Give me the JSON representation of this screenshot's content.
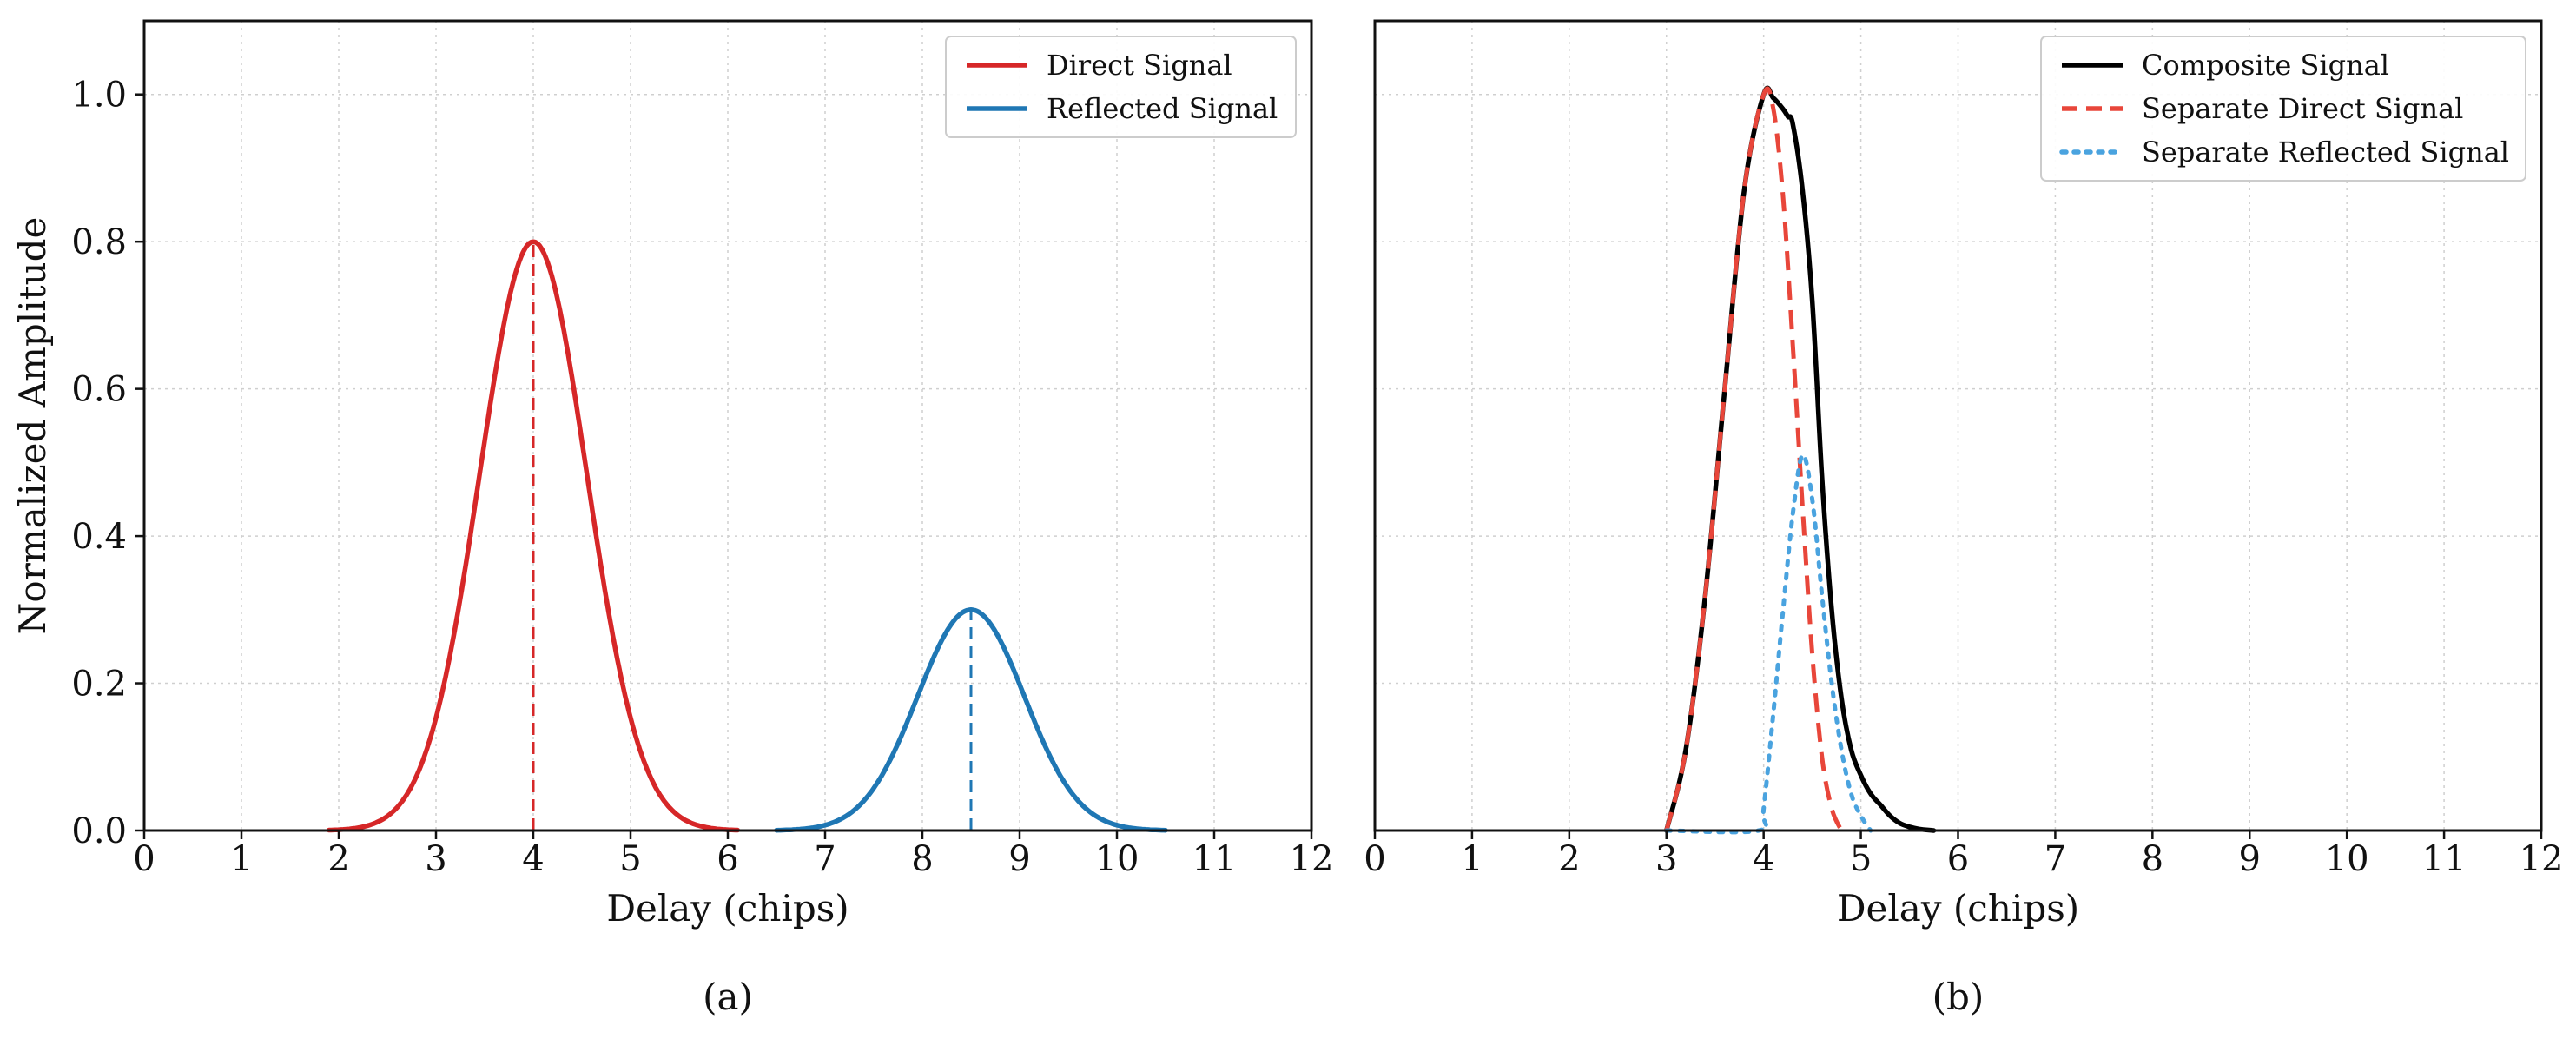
{
  "chart_data": [
    {
      "id": "a",
      "type": "line",
      "caption": "(a)",
      "xlabel": "Delay (chips)",
      "ylabel": "Normalized Amplitude",
      "xlim": [
        0,
        12
      ],
      "ylim": [
        0,
        1.1
      ],
      "xticks": [
        0,
        1,
        2,
        3,
        4,
        5,
        6,
        7,
        8,
        9,
        10,
        11,
        12
      ],
      "yticks": [
        0.0,
        0.2,
        0.4,
        0.6,
        0.8,
        1.0
      ],
      "ytick_labels": [
        "0.0",
        "0.2",
        "0.4",
        "0.6",
        "0.8",
        "1.0"
      ],
      "grid": true,
      "legend_position": "top-right",
      "series": [
        {
          "name": "Direct Signal",
          "color": "#d62728",
          "style": "solid",
          "curve": "gaussian",
          "peak_x": 4.0,
          "peak_y": 0.8,
          "sigma": 0.55,
          "x_range": [
            1.9,
            6.1
          ],
          "marker_line": {
            "x": 4.0,
            "y_top": 0.8,
            "style": "dashed"
          }
        },
        {
          "name": "Reflected Signal",
          "color": "#1f77b4",
          "style": "solid",
          "curve": "gaussian",
          "peak_x": 8.5,
          "peak_y": 0.3,
          "sigma": 0.55,
          "x_range": [
            6.5,
            10.5
          ],
          "marker_line": {
            "x": 8.5,
            "y_top": 0.3,
            "style": "dashed"
          }
        }
      ]
    },
    {
      "id": "b",
      "type": "line",
      "caption": "(b)",
      "xlabel": "Delay (chips)",
      "ylabel": "",
      "xlim": [
        0,
        12
      ],
      "ylim": [
        0,
        1.1
      ],
      "xticks": [
        0,
        1,
        2,
        3,
        4,
        5,
        6,
        7,
        8,
        9,
        10,
        11,
        12
      ],
      "yticks": [
        0.0,
        0.2,
        0.4,
        0.6,
        0.8,
        1.0
      ],
      "grid": true,
      "legend_position": "top-right",
      "series": [
        {
          "name": "Composite Signal",
          "color": "#000000",
          "style": "solid",
          "x": [
            3.0,
            3.2,
            3.4,
            3.6,
            3.8,
            4.0,
            4.1,
            4.2,
            4.25,
            4.3,
            4.4,
            4.5,
            4.6,
            4.7,
            4.8,
            4.9,
            5.0,
            5.1,
            5.2,
            5.3,
            5.4,
            5.5,
            5.6,
            5.75
          ],
          "y": [
            0.0,
            0.11,
            0.32,
            0.6,
            0.87,
            1.0,
            0.995,
            0.98,
            0.97,
            0.96,
            0.87,
            0.72,
            0.48,
            0.3,
            0.18,
            0.11,
            0.075,
            0.05,
            0.035,
            0.02,
            0.01,
            0.005,
            0.002,
            0.0
          ]
        },
        {
          "name": "Separate Direct Signal",
          "color": "#e8463a",
          "style": "dashed",
          "x": [
            3.0,
            3.2,
            3.4,
            3.6,
            3.8,
            4.0,
            4.1,
            4.2,
            4.3,
            4.4,
            4.5,
            4.6,
            4.7,
            4.8
          ],
          "y": [
            0.0,
            0.11,
            0.32,
            0.6,
            0.87,
            1.0,
            0.98,
            0.86,
            0.66,
            0.44,
            0.24,
            0.1,
            0.03,
            0.0
          ]
        },
        {
          "name": "Separate Reflected Signal",
          "color": "#4aa3df",
          "style": "dotted",
          "x": [
            3.0,
            3.95,
            4.0,
            4.1,
            4.2,
            4.3,
            4.4,
            4.5,
            4.6,
            4.7,
            4.8,
            4.9,
            5.0,
            5.1
          ],
          "y": [
            0.0,
            0.0,
            0.03,
            0.16,
            0.3,
            0.43,
            0.51,
            0.45,
            0.32,
            0.2,
            0.11,
            0.05,
            0.02,
            0.0
          ]
        }
      ]
    }
  ]
}
